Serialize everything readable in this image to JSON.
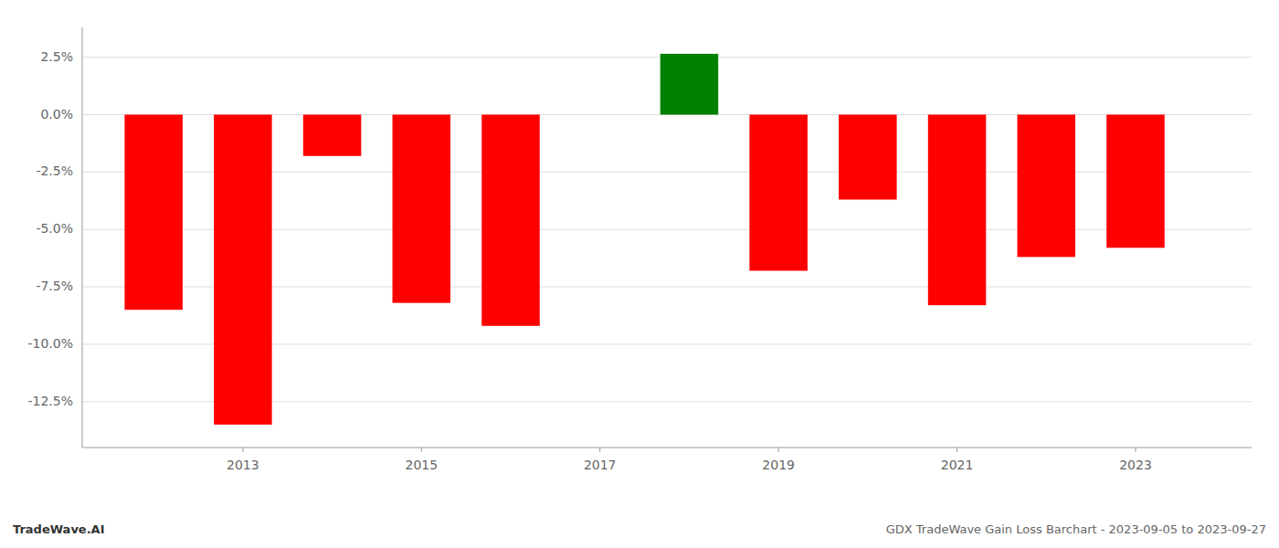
{
  "chart_data": {
    "type": "bar",
    "x": [
      2012,
      2013,
      2014,
      2015,
      2016,
      2018,
      2019,
      2020,
      2021,
      2022,
      2023
    ],
    "values": [
      -8.5,
      -13.5,
      -1.8,
      -8.2,
      -9.2,
      2.65,
      -6.8,
      -3.7,
      -8.3,
      -6.2,
      -5.8
    ],
    "colors": [
      "#ff0000",
      "#ff0000",
      "#ff0000",
      "#ff0000",
      "#ff0000",
      "#008000",
      "#ff0000",
      "#ff0000",
      "#ff0000",
      "#ff0000",
      "#ff0000"
    ],
    "xlim": [
      2011.2,
      2024.3
    ],
    "xticks": [
      2013,
      2015,
      2017,
      2019,
      2021,
      2023
    ],
    "ylim": [
      -14.5,
      3.8
    ],
    "yticks": [
      {
        "value": -12.5,
        "label": "-12.5%"
      },
      {
        "value": -10.0,
        "label": "-10.0%"
      },
      {
        "value": -7.5,
        "label": "-7.5%"
      },
      {
        "value": -5.0,
        "label": "-5.0%"
      },
      {
        "value": -2.5,
        "label": "-2.5%"
      },
      {
        "value": 0.0,
        "label": "0.0%"
      },
      {
        "value": 2.5,
        "label": "2.5%"
      }
    ],
    "grid": true,
    "annotations": [
      "TradeWave.AI",
      "GDX TradeWave Gain Loss Barchart - 2023-09-05 to 2023-09-27"
    ]
  }
}
